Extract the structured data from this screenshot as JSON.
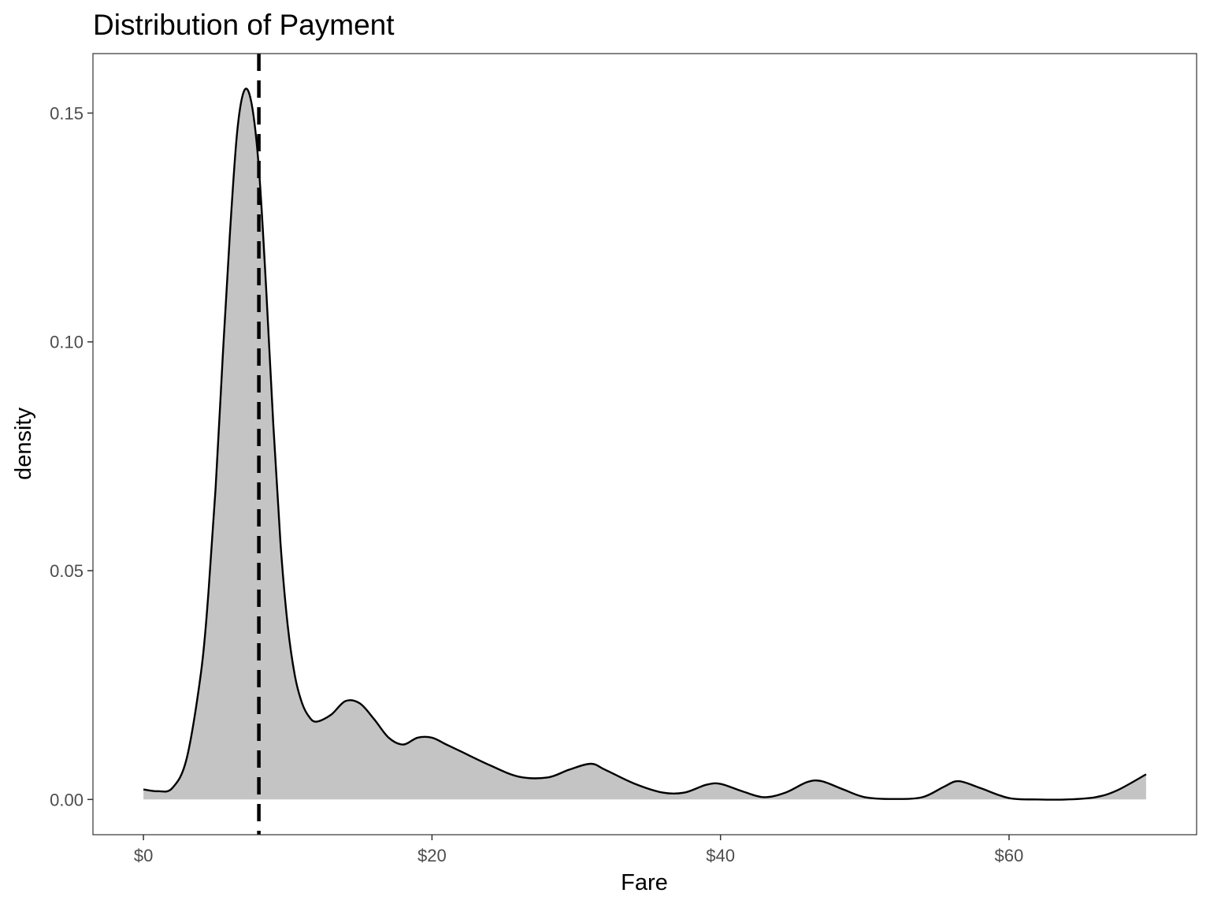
{
  "chart_data": {
    "type": "area",
    "title": "Distribution of Payment",
    "xlabel": "Fare",
    "ylabel": "density",
    "xlim": [
      -3.5,
      73
    ],
    "ylim": [
      -0.0077,
      0.163
    ],
    "x_ticks": [
      {
        "value": 0,
        "label": "$0"
      },
      {
        "value": 20,
        "label": "$20"
      },
      {
        "value": 40,
        "label": "$40"
      },
      {
        "value": 60,
        "label": "$60"
      }
    ],
    "y_ticks": [
      {
        "value": 0.0,
        "label": "0.00"
      },
      {
        "value": 0.05,
        "label": "0.05"
      },
      {
        "value": 0.1,
        "label": "0.10"
      },
      {
        "value": 0.15,
        "label": "0.15"
      }
    ],
    "grid": false,
    "series": [
      {
        "x": [
          0,
          1,
          2,
          3,
          4,
          4.5,
          5,
          5.5,
          6,
          6.5,
          7,
          7.5,
          8,
          8.5,
          9,
          9.5,
          10,
          10.5,
          11,
          11.5,
          12,
          13,
          14,
          15,
          16,
          17,
          18,
          19,
          20,
          21,
          22,
          24,
          26,
          28,
          29.5,
          31,
          32,
          34,
          36,
          37.5,
          39,
          40,
          41.5,
          43,
          44.5,
          46,
          47,
          48.5,
          50,
          52,
          54,
          55.5,
          56.5,
          58,
          60,
          62,
          64,
          66,
          67.5,
          69.5
        ],
        "y": [
          0.0022,
          0.0018,
          0.0025,
          0.009,
          0.028,
          0.045,
          0.068,
          0.097,
          0.124,
          0.146,
          0.155,
          0.152,
          0.138,
          0.112,
          0.082,
          0.056,
          0.038,
          0.027,
          0.021,
          0.018,
          0.017,
          0.0185,
          0.0215,
          0.021,
          0.0175,
          0.0135,
          0.012,
          0.0135,
          0.0135,
          0.012,
          0.0105,
          0.0075,
          0.005,
          0.0048,
          0.0065,
          0.0078,
          0.0065,
          0.0035,
          0.0015,
          0.0015,
          0.0032,
          0.0034,
          0.0018,
          0.0005,
          0.0015,
          0.0038,
          0.004,
          0.0022,
          0.0005,
          0.0001,
          0.0005,
          0.0028,
          0.004,
          0.0025,
          0.0003,
          0.0,
          0.0,
          0.0005,
          0.002,
          0.0055
        ],
        "fill": "#c4c4c4",
        "line_color": "#000000"
      }
    ],
    "reference_line": {
      "x": 8,
      "style": "dashed",
      "color": "#000000"
    }
  }
}
